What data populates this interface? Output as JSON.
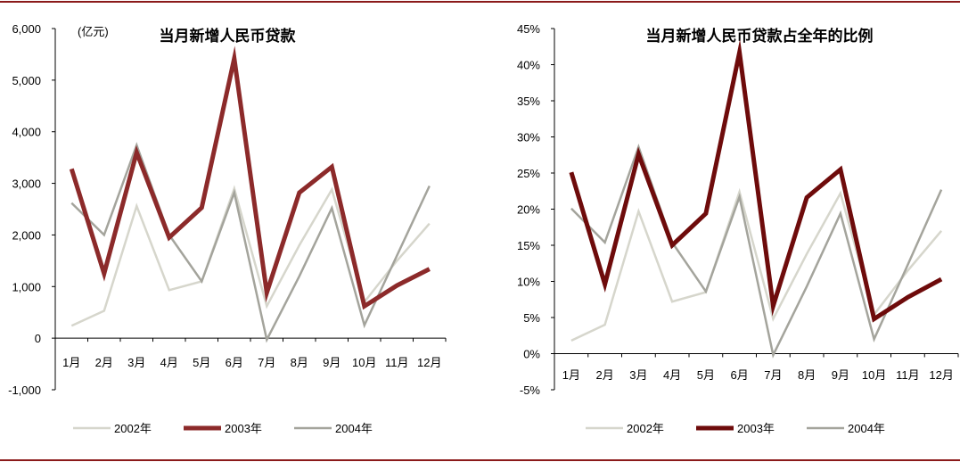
{
  "page": {
    "accent_color": "#8b1a1a"
  },
  "chart_data": [
    {
      "type": "line",
      "title": "当月新增人民币贷款",
      "unit_label": "(亿元)",
      "categories": [
        "1月",
        "2月",
        "3月",
        "4月",
        "5月",
        "6月",
        "7月",
        "8月",
        "9月",
        "10月",
        "11月",
        "12月"
      ],
      "ylim": [
        -1000,
        6000
      ],
      "yticks": [
        -1000,
        0,
        1000,
        2000,
        3000,
        4000,
        5000,
        6000
      ],
      "ytick_labels": [
        "-1,000",
        "0",
        "1,000",
        "2,000",
        "3,000",
        "4,000",
        "5,000",
        "6,000"
      ],
      "grid": false,
      "legend_position": "bottom",
      "series": [
        {
          "name": "2002年",
          "color": "#d6d6cc",
          "width": 2.5,
          "values": [
            240,
            530,
            2560,
            930,
            1100,
            2900,
            620,
            1800,
            2880,
            700,
            1500,
            2220
          ]
        },
        {
          "name": "2003年",
          "color": "#8c2a2a",
          "width": 5,
          "values": [
            3280,
            1250,
            3600,
            1950,
            2530,
            5420,
            880,
            2820,
            3320,
            620,
            1020,
            1340
          ]
        },
        {
          "name": "2004年",
          "color": "#a4a49c",
          "width": 2.5,
          "values": [
            2620,
            2000,
            3740,
            2000,
            1100,
            2820,
            -30,
            1200,
            2520,
            250,
            1600,
            2950
          ]
        }
      ]
    },
    {
      "type": "line",
      "title": "当月新增人民币贷款占全年的比例",
      "categories": [
        "1月",
        "2月",
        "3月",
        "4月",
        "5月",
        "6月",
        "7月",
        "8月",
        "9月",
        "10月",
        "11月",
        "12月"
      ],
      "ylim": [
        -5,
        45
      ],
      "yticks": [
        -5,
        0,
        5,
        10,
        15,
        20,
        25,
        30,
        35,
        40,
        45
      ],
      "ytick_labels": [
        "-5%",
        "0%",
        "5%",
        "10%",
        "15%",
        "20%",
        "25%",
        "30%",
        "35%",
        "40%",
        "45%"
      ],
      "grid": false,
      "legend_position": "bottom",
      "series": [
        {
          "name": "2002年",
          "color": "#d6d6cc",
          "width": 2.5,
          "values": [
            1.8,
            4.0,
            19.7,
            7.2,
            8.5,
            22.4,
            4.8,
            13.8,
            22.2,
            5.4,
            11.5,
            17.0
          ]
        },
        {
          "name": "2003年",
          "color": "#6e0b0b",
          "width": 5,
          "values": [
            25.1,
            9.6,
            27.6,
            15.0,
            19.4,
            41.7,
            6.6,
            21.6,
            25.5,
            4.8,
            7.8,
            10.3
          ]
        },
        {
          "name": "2004年",
          "color": "#a4a49c",
          "width": 2.5,
          "values": [
            20.1,
            15.4,
            28.6,
            15.4,
            8.6,
            21.7,
            -0.2,
            9.3,
            19.4,
            2.0,
            12.3,
            22.7
          ]
        }
      ]
    }
  ]
}
